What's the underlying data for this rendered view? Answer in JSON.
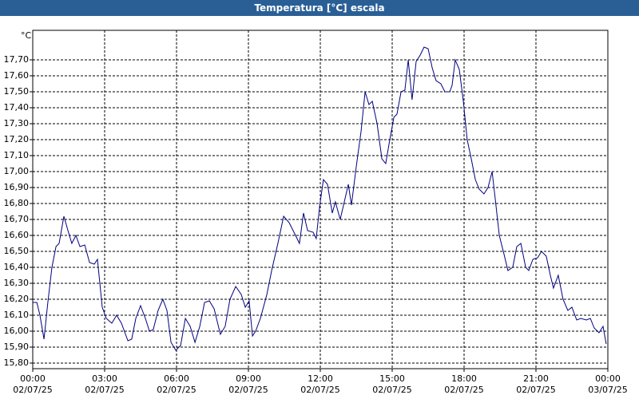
{
  "chart_data": {
    "type": "line",
    "title": "Temperatura [°C] escala",
    "y_label": "°C",
    "xlim": [
      0,
      24
    ],
    "ylim": [
      15.765,
      17.885
    ],
    "xticks": [
      {
        "value": 0,
        "label": "00:00\n02/07/25"
      },
      {
        "value": 3,
        "label": "03:00\n02/07/25"
      },
      {
        "value": 6,
        "label": "06:00\n02/07/25"
      },
      {
        "value": 9,
        "label": "09:00\n02/07/25"
      },
      {
        "value": 12,
        "label": "12:00\n02/07/25"
      },
      {
        "value": 15,
        "label": "15:00\n02/07/25"
      },
      {
        "value": 18,
        "label": "18:00\n02/07/25"
      },
      {
        "value": 21,
        "label": "21:00\n02/07/25"
      },
      {
        "value": 24,
        "label": "00:00\n03/07/25"
      }
    ],
    "yticks": [
      {
        "value": 15.8,
        "label": "15,80"
      },
      {
        "value": 15.9,
        "label": "15,90"
      },
      {
        "value": 16.0,
        "label": "16,00"
      },
      {
        "value": 16.1,
        "label": "16,10"
      },
      {
        "value": 16.2,
        "label": "16,20"
      },
      {
        "value": 16.3,
        "label": "16,30"
      },
      {
        "value": 16.4,
        "label": "16,40"
      },
      {
        "value": 16.5,
        "label": "16,50"
      },
      {
        "value": 16.6,
        "label": "16,60"
      },
      {
        "value": 16.7,
        "label": "16,70"
      },
      {
        "value": 16.8,
        "label": "16,80"
      },
      {
        "value": 16.9,
        "label": "16,90"
      },
      {
        "value": 17.0,
        "label": "17,00"
      },
      {
        "value": 17.1,
        "label": "17,10"
      },
      {
        "value": 17.2,
        "label": "17,20"
      },
      {
        "value": 17.3,
        "label": "17,30"
      },
      {
        "value": 17.4,
        "label": "17,40"
      },
      {
        "value": 17.5,
        "label": "17,50"
      },
      {
        "value": 17.6,
        "label": "17,60"
      },
      {
        "value": 17.7,
        "label": "17,70"
      }
    ],
    "grid": true,
    "x": [
      0,
      0.17,
      0.3,
      0.47,
      0.63,
      0.8,
      0.97,
      1.1,
      1.3,
      1.47,
      1.63,
      1.8,
      1.97,
      2.17,
      2.37,
      2.57,
      2.7,
      2.9,
      3.07,
      3.3,
      3.5,
      3.7,
      3.97,
      4.13,
      4.3,
      4.5,
      4.7,
      4.87,
      5.03,
      5.23,
      5.43,
      5.6,
      5.77,
      5.97,
      6.17,
      6.37,
      6.57,
      6.77,
      6.97,
      7.17,
      7.37,
      7.57,
      7.83,
      8.03,
      8.23,
      8.47,
      8.7,
      8.87,
      9.03,
      9.17,
      9.3,
      9.5,
      9.77,
      9.97,
      10.23,
      10.47,
      10.7,
      10.9,
      11.13,
      11.3,
      11.47,
      11.7,
      11.83,
      11.97,
      12.13,
      12.3,
      12.5,
      12.63,
      12.83,
      12.97,
      13.17,
      13.3,
      13.5,
      13.7,
      13.87,
      14.03,
      14.17,
      14.37,
      14.57,
      14.73,
      14.9,
      15.07,
      15.2,
      15.37,
      15.53,
      15.67,
      15.83,
      16,
      16.17,
      16.33,
      16.5,
      16.67,
      16.83,
      17.03,
      17.2,
      17.4,
      17.5,
      17.63,
      17.8,
      17.97,
      18.13,
      18.3,
      18.47,
      18.63,
      18.83,
      19,
      19.17,
      19.3,
      19.47,
      19.67,
      19.83,
      20.03,
      20.2,
      20.37,
      20.57,
      20.7,
      20.87,
      21.07,
      21.23,
      21.43,
      21.6,
      21.73,
      21.93,
      22.13,
      22.33,
      22.5,
      22.7,
      22.87,
      23.1,
      23.27,
      23.43,
      23.63,
      23.8,
      23.93
    ],
    "series": [
      {
        "color": "#000080",
        "values": [
          16.18,
          16.18,
          16.1,
          15.95,
          16.18,
          16.4,
          16.53,
          16.55,
          16.72,
          16.63,
          16.55,
          16.6,
          16.53,
          16.54,
          16.43,
          16.42,
          16.45,
          16.15,
          16.08,
          16.05,
          16.1,
          16.05,
          15.94,
          15.95,
          16.08,
          16.16,
          16.08,
          16.0,
          16.01,
          16.13,
          16.2,
          16.13,
          15.93,
          15.88,
          15.91,
          16.08,
          16.03,
          15.93,
          16.03,
          16.18,
          16.19,
          16.14,
          15.98,
          16.03,
          16.2,
          16.28,
          16.23,
          16.15,
          16.19,
          15.97,
          16.0,
          16.08,
          16.23,
          16.38,
          16.55,
          16.72,
          16.68,
          16.62,
          16.55,
          16.74,
          16.63,
          16.62,
          16.58,
          16.78,
          16.95,
          16.92,
          16.74,
          16.81,
          16.7,
          16.79,
          16.92,
          16.79,
          17.03,
          17.25,
          17.5,
          17.42,
          17.44,
          17.3,
          17.08,
          17.05,
          17.2,
          17.34,
          17.36,
          17.5,
          17.51,
          17.7,
          17.45,
          17.69,
          17.73,
          17.78,
          17.77,
          17.65,
          17.57,
          17.55,
          17.5,
          17.5,
          17.54,
          17.7,
          17.64,
          17.44,
          17.2,
          17.08,
          16.95,
          16.89,
          16.86,
          16.9,
          17.0,
          16.83,
          16.6,
          16.48,
          16.38,
          16.4,
          16.53,
          16.55,
          16.4,
          16.38,
          16.45,
          16.46,
          16.5,
          16.47,
          16.35,
          16.27,
          16.35,
          16.2,
          16.13,
          16.15,
          16.07,
          16.08,
          16.07,
          16.08,
          16.02,
          15.99,
          16.03,
          15.92
        ]
      }
    ]
  }
}
